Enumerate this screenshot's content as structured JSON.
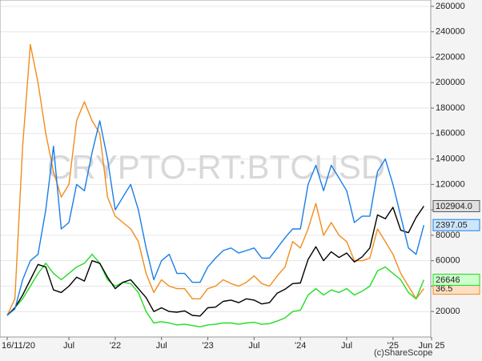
{
  "chart_data": {
    "type": "line",
    "watermark": "CRYPTO-RT:BTCUSD",
    "copyright": "(c)ShareScope",
    "x": [
      "2020-11",
      "2020-12",
      "2021-01",
      "2021-02",
      "2021-03",
      "2021-04",
      "2021-05",
      "2021-06",
      "2021-07",
      "2021-08",
      "2021-09",
      "2021-10",
      "2021-11",
      "2021-12",
      "2022-01",
      "2022-02",
      "2022-03",
      "2022-04",
      "2022-05",
      "2022-06",
      "2022-07",
      "2022-08",
      "2022-09",
      "2022-10",
      "2022-11",
      "2022-12",
      "2023-01",
      "2023-02",
      "2023-03",
      "2023-04",
      "2023-05",
      "2023-06",
      "2023-07",
      "2023-08",
      "2023-09",
      "2023-10",
      "2023-11",
      "2023-12",
      "2024-01",
      "2024-02",
      "2024-03",
      "2024-04",
      "2024-05",
      "2024-06",
      "2024-07",
      "2024-08",
      "2024-09",
      "2024-10",
      "2024-11",
      "2024-12",
      "2025-01",
      "2025-02",
      "2025-03",
      "2025-04",
      "2025-05"
    ],
    "series": [
      {
        "color": "#f28c1c",
        "last_label": "36.5",
        "label_fill": "#fde0c4",
        "values": [
          17000,
          30000,
          150000,
          230000,
          200000,
          160000,
          130000,
          110000,
          120000,
          170000,
          185000,
          170000,
          160000,
          110000,
          95000,
          90000,
          85000,
          75000,
          50000,
          35000,
          45000,
          40000,
          38000,
          38000,
          30000,
          30000,
          38000,
          40000,
          45000,
          42000,
          40000,
          43000,
          48000,
          42000,
          40000,
          48000,
          55000,
          75000,
          70000,
          85000,
          105000,
          80000,
          90000,
          80000,
          75000,
          60000,
          60000,
          62000,
          85000,
          75000,
          65000,
          50000,
          40000,
          30000,
          38000
        ]
      },
      {
        "color": "#22dd22",
        "last_label": "26646",
        "label_fill": "#ccffcc",
        "values": [
          17000,
          23000,
          30000,
          40000,
          50000,
          58000,
          50000,
          45000,
          50000,
          55000,
          58000,
          65000,
          58000,
          45000,
          40000,
          43000,
          42000,
          35000,
          20000,
          11000,
          12000,
          11000,
          9500,
          10000,
          9000,
          8000,
          9500,
          10000,
          11000,
          11000,
          10000,
          11000,
          11500,
          10000,
          10500,
          12500,
          15000,
          20000,
          21000,
          33000,
          38000,
          33000,
          37000,
          35000,
          38000,
          33000,
          36000,
          40000,
          52000,
          55000,
          50000,
          45000,
          35000,
          30000,
          45000
        ]
      },
      {
        "color": "#000000",
        "last_label": "102904.0",
        "label_fill": "#e0e0e0",
        "values": [
          17000,
          23000,
          33000,
          45000,
          57000,
          55000,
          37000,
          35000,
          40000,
          47000,
          44000,
          60000,
          58000,
          47000,
          38000,
          43000,
          45000,
          38000,
          31000,
          20000,
          23000,
          20000,
          19500,
          20500,
          17000,
          16500,
          23000,
          23500,
          28000,
          29000,
          27000,
          30000,
          29000,
          26000,
          27000,
          34500,
          37500,
          42000,
          42500,
          61000,
          71000,
          60000,
          67000,
          62500,
          66000,
          59000,
          63000,
          70000,
          96000,
          93000,
          102000,
          84000,
          82000,
          94000,
          102904
        ]
      },
      {
        "color": "#1a7ee8",
        "last_label": "2397.05",
        "label_fill": "#cde6fb",
        "values": [
          17000,
          22000,
          45000,
          60000,
          65000,
          100000,
          150000,
          85000,
          90000,
          120000,
          115000,
          145000,
          170000,
          140000,
          100000,
          110000,
          120000,
          100000,
          70000,
          45000,
          60000,
          65000,
          50000,
          50000,
          43000,
          43000,
          55000,
          62000,
          68000,
          70000,
          66000,
          68000,
          70000,
          62000,
          62000,
          70000,
          78000,
          85000,
          85000,
          120000,
          135000,
          115000,
          135000,
          125000,
          115000,
          90000,
          95000,
          95000,
          130000,
          140000,
          120000,
          95000,
          70000,
          65000,
          88000
        ]
      }
    ],
    "xlim": [
      "2020-11",
      "2025-06"
    ],
    "xticks": [
      {
        "value": "2020-11",
        "label": "16/11/20"
      },
      {
        "value": "2021-07",
        "label": "Jul"
      },
      {
        "value": "2022-01",
        "label": "'22"
      },
      {
        "value": "2022-07",
        "label": "Jul"
      },
      {
        "value": "2023-01",
        "label": "'23"
      },
      {
        "value": "2023-07",
        "label": "Jul"
      },
      {
        "value": "2024-01",
        "label": "'24"
      },
      {
        "value": "2024-07",
        "label": "Jul"
      },
      {
        "value": "2025-01",
        "label": "'25"
      },
      {
        "value": "2025-06",
        "label": "Jun 25"
      }
    ],
    "ylim": [
      0,
      265000
    ],
    "yticks": [
      20000,
      40000,
      60000,
      80000,
      100000,
      120000,
      140000,
      160000,
      180000,
      200000,
      220000,
      240000,
      260000
    ],
    "grid": true
  }
}
